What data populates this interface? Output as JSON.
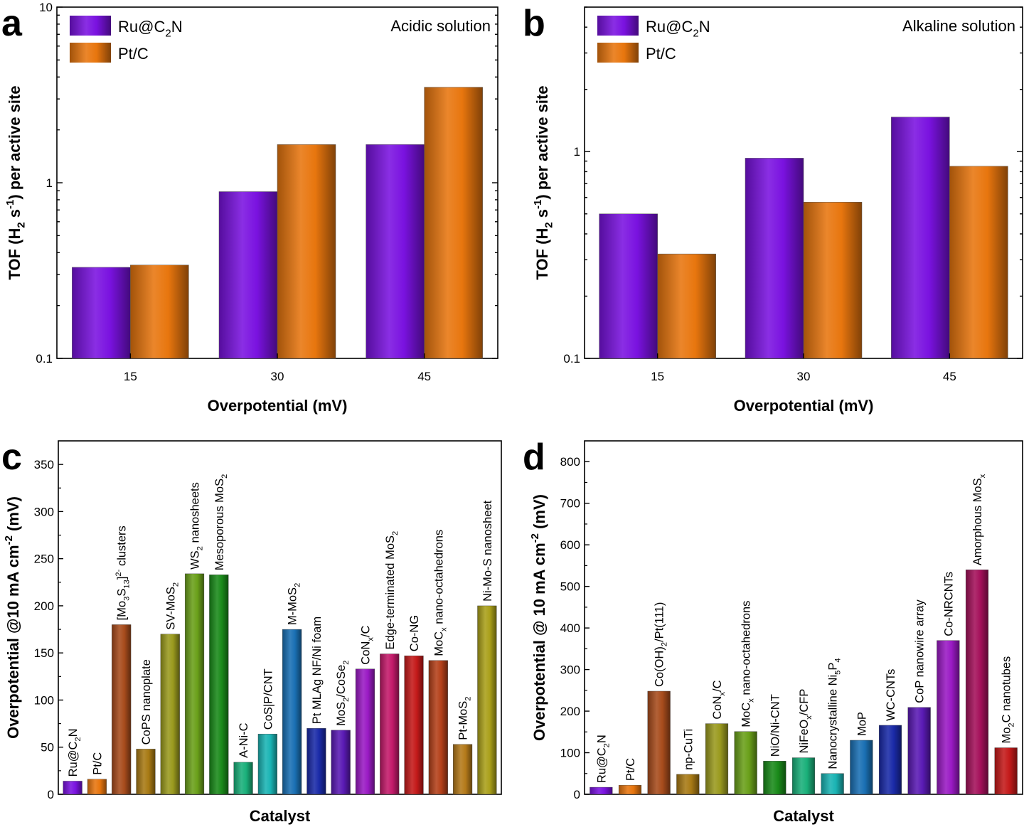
{
  "chart_data": [
    {
      "panel": "a",
      "type": "bar",
      "scale": "log",
      "categories": [
        "15",
        "30",
        "45"
      ],
      "series": [
        {
          "name": "Ru@C2N",
          "values": [
            0.33,
            0.89,
            1.65
          ],
          "color": "#7a12e0"
        },
        {
          "name": "Pt/C",
          "values": [
            0.34,
            1.65,
            3.5
          ],
          "color": "#e8760e"
        }
      ],
      "legend_labels": [
        [
          "Ru@C",
          "2",
          "N"
        ],
        [
          "Pt/C"
        ]
      ],
      "note": "Acidic solution",
      "xlabel": "Overpotential (mV)",
      "ylabel_parts": [
        "TOF (H",
        "2",
        " s",
        "-1",
        ") per active site"
      ],
      "ylim": [
        0.1,
        10
      ],
      "yticks": [
        0.1,
        1,
        10
      ],
      "ytick_labels": [
        "0.1",
        "1",
        "10"
      ]
    },
    {
      "panel": "b",
      "type": "bar",
      "scale": "log",
      "categories": [
        "15",
        "30",
        "45"
      ],
      "series": [
        {
          "name": "Ru@C2N",
          "values": [
            0.5,
            0.93,
            1.47
          ],
          "color": "#7a12e0"
        },
        {
          "name": "Pt/C",
          "values": [
            0.32,
            0.57,
            0.85
          ],
          "color": "#e8760e"
        }
      ],
      "legend_labels": [
        [
          "Ru@C",
          "2",
          "N"
        ],
        [
          "Pt/C"
        ]
      ],
      "note": "Alkaline solution",
      "xlabel": "Overpotential (mV)",
      "ylabel_parts": [
        "TOF (H",
        "2",
        " s",
        "-1",
        ") per active site"
      ],
      "ylim": [
        0.1,
        5
      ],
      "yticks": [
        0.1,
        1
      ],
      "ytick_labels": [
        "0.1",
        "1"
      ]
    },
    {
      "panel": "c",
      "type": "bar",
      "scale": "linear",
      "xlabel": "Catalyst",
      "ylabel_parts": [
        "Overpotential @10 mA cm",
        "-2",
        " (mV)"
      ],
      "ylim": [
        0,
        375
      ],
      "yticks": [
        0,
        50,
        100,
        150,
        200,
        250,
        300,
        350
      ],
      "bars": [
        {
          "label": [
            [
              "Ru@C",
              ""
            ],
            [
              "2",
              "sub"
            ],
            [
              "N",
              ""
            ]
          ],
          "value": 14,
          "color": "#7a12e0"
        },
        {
          "label": [
            [
              "Pt/C",
              ""
            ]
          ],
          "value": 16,
          "color": "#e8760e"
        },
        {
          "label": [
            [
              "[Mo",
              ""
            ],
            [
              "3",
              "sub"
            ],
            [
              "S",
              ""
            ],
            [
              "13",
              "sub"
            ],
            [
              "]",
              ""
            ],
            [
              "2-",
              "sup"
            ],
            [
              " clusters",
              ""
            ]
          ],
          "value": 180,
          "color": "#a84c1c"
        },
        {
          "label": [
            [
              "CoPS nanoplate",
              ""
            ]
          ],
          "value": 48,
          "color": "#a87a14"
        },
        {
          "label": [
            [
              "SV-MoS",
              ""
            ],
            [
              "2",
              "sub"
            ]
          ],
          "value": 170,
          "color": "#9a9a1e"
        },
        {
          "label": [
            [
              "WS",
              ""
            ],
            [
              "2",
              "sub"
            ],
            [
              " nanosheets",
              ""
            ]
          ],
          "value": 234,
          "color": "#6aa01a"
        },
        {
          "label": [
            [
              "Mesoporous MoS",
              ""
            ],
            [
              "2",
              "sub"
            ]
          ],
          "value": 233,
          "color": "#1a8a1a"
        },
        {
          "label": [
            [
              "A-Ni-C",
              ""
            ]
          ],
          "value": 34,
          "color": "#1ab07a"
        },
        {
          "label": [
            [
              "CoS|P/CNT",
              ""
            ]
          ],
          "value": 64,
          "color": "#1ab4b4"
        },
        {
          "label": [
            [
              "M-MoS",
              ""
            ],
            [
              "2",
              "sub"
            ]
          ],
          "value": 175,
          "color": "#1a70b4"
        },
        {
          "label": [
            [
              "Pt MLAg NF/Ni foam",
              ""
            ]
          ],
          "value": 70,
          "color": "#1a2aa8"
        },
        {
          "label": [
            [
              "MoS",
              ""
            ],
            [
              "2",
              "sub"
            ],
            [
              "/CoSe",
              ""
            ],
            [
              "2",
              "sub"
            ]
          ],
          "value": 68,
          "color": "#5a1ab4"
        },
        {
          "label": [
            [
              "CoN",
              ""
            ],
            [
              "x",
              "sub"
            ],
            [
              "/C",
              ""
            ]
          ],
          "value": 133,
          "color": "#9a1ac4"
        },
        {
          "label": [
            [
              "Edge-terminated MoS",
              ""
            ],
            [
              "2",
              "sub"
            ]
          ],
          "value": 149,
          "color": "#c41a6a"
        },
        {
          "label": [
            [
              "Co-NG",
              ""
            ]
          ],
          "value": 147,
          "color": "#c41a1a"
        },
        {
          "label": [
            [
              "MoC",
              ""
            ],
            [
              "x",
              "sub"
            ],
            [
              " nano-octahedrons",
              ""
            ]
          ],
          "value": 142,
          "color": "#b4401a"
        },
        {
          "label": [
            [
              "Pt-MoS",
              ""
            ],
            [
              "2",
              "sub"
            ]
          ],
          "value": 53,
          "color": "#b47a1a"
        },
        {
          "label": [
            [
              "Ni-Mo-S nanosheet",
              ""
            ]
          ],
          "value": 200,
          "color": "#aaa01a"
        }
      ]
    },
    {
      "panel": "d",
      "type": "bar",
      "scale": "linear",
      "xlabel": "Catalyst",
      "ylabel_parts": [
        "Overpotential @ 10 mA cm",
        "-2",
        " (mV)"
      ],
      "ylim": [
        0,
        850
      ],
      "yticks": [
        0,
        100,
        200,
        300,
        400,
        500,
        600,
        700,
        800
      ],
      "bars": [
        {
          "label": [
            [
              "Ru@C",
              ""
            ],
            [
              "2",
              "sub"
            ],
            [
              "N",
              ""
            ]
          ],
          "value": 17,
          "color": "#7a12e0"
        },
        {
          "label": [
            [
              "Pt/C",
              ""
            ]
          ],
          "value": 22,
          "color": "#e8760e"
        },
        {
          "label": [
            [
              "Co(OH)",
              ""
            ],
            [
              "2",
              "sub"
            ],
            [
              "/Pt(111)",
              ""
            ]
          ],
          "value": 248,
          "color": "#a84c1c"
        },
        {
          "label": [
            [
              "np-CuTi",
              ""
            ]
          ],
          "value": 48,
          "color": "#a87a14"
        },
        {
          "label": [
            [
              "CoN",
              ""
            ],
            [
              "x",
              "sub"
            ],
            [
              "/C",
              ""
            ]
          ],
          "value": 170,
          "color": "#9a9a1e"
        },
        {
          "label": [
            [
              "MoC",
              ""
            ],
            [
              "x",
              "sub"
            ],
            [
              " nano-octahedrons",
              ""
            ]
          ],
          "value": 151,
          "color": "#6aa01a"
        },
        {
          "label": [
            [
              "NiO/Ni-CNT",
              ""
            ]
          ],
          "value": 80,
          "color": "#1a8a1a"
        },
        {
          "label": [
            [
              "NiFeO",
              ""
            ],
            [
              "x",
              "sub"
            ],
            [
              "/CFP",
              ""
            ]
          ],
          "value": 88,
          "color": "#1ab07a"
        },
        {
          "label": [
            [
              "Nanocrystalline Ni",
              ""
            ],
            [
              "5",
              "sub"
            ],
            [
              "P",
              ""
            ],
            [
              "4",
              "sub"
            ]
          ],
          "value": 50,
          "color": "#1ab4b4"
        },
        {
          "label": [
            [
              "MoP",
              ""
            ]
          ],
          "value": 130,
          "color": "#1a70b4"
        },
        {
          "label": [
            [
              "WC-CNTs",
              ""
            ]
          ],
          "value": 166,
          "color": "#1a2aa8"
        },
        {
          "label": [
            [
              "CoP nanowire array",
              ""
            ]
          ],
          "value": 209,
          "color": "#5a1ab4"
        },
        {
          "label": [
            [
              "Co-NRCNTs",
              ""
            ]
          ],
          "value": 370,
          "color": "#9a1ac4"
        },
        {
          "label": [
            [
              "Amorphous MoS",
              ""
            ],
            [
              "x",
              "sub"
            ]
          ],
          "value": 540,
          "color": "#a4105a"
        },
        {
          "label": [
            [
              "Mo",
              ""
            ],
            [
              "2",
              "sub"
            ],
            [
              "C nanotubes",
              ""
            ]
          ],
          "value": 112,
          "color": "#c41a1a"
        }
      ]
    }
  ],
  "panel_labels": [
    "a",
    "b",
    "c",
    "d"
  ]
}
